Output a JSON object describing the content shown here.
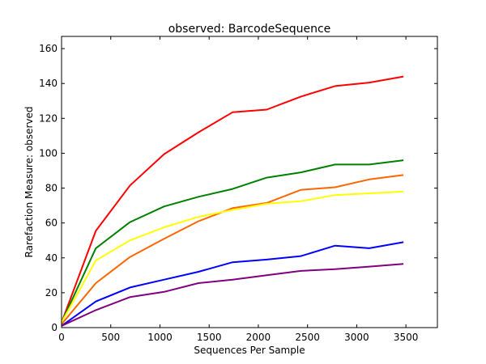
{
  "chart_data": {
    "type": "line",
    "title": "observed: BarcodeSequence",
    "xlabel": "Sequences Per Sample",
    "ylabel": "Rarefaction Measure: observed",
    "xlim": [
      0,
      3820
    ],
    "ylim": [
      0,
      167
    ],
    "xticks": [
      0,
      500,
      1000,
      1500,
      2000,
      2500,
      3000,
      3500
    ],
    "yticks": [
      0,
      20,
      40,
      60,
      80,
      100,
      120,
      140,
      160
    ],
    "grid": false,
    "legend": "none",
    "x": [
      1,
      348,
      696,
      1043,
      1391,
      1738,
      2085,
      2433,
      2780,
      3128,
      3475
    ],
    "series": [
      {
        "color": "#ff0000",
        "values": [
          3,
          55.5,
          81.5,
          99.5,
          112,
          123.5,
          125,
          132.5,
          138.5,
          140.5,
          144
        ]
      },
      {
        "color": "#008000",
        "values": [
          3,
          45.5,
          60.5,
          69.5,
          75,
          79.5,
          86,
          89,
          93.5,
          93.5,
          96
        ]
      },
      {
        "color": "#ff6600",
        "values": [
          2,
          25.5,
          40.5,
          51,
          61,
          68.5,
          71.5,
          79,
          80.5,
          85,
          87.5
        ]
      },
      {
        "color": "#ffff00",
        "values": [
          3,
          38.5,
          50,
          57.5,
          63.5,
          67.5,
          71,
          72.5,
          76,
          77,
          78
        ]
      },
      {
        "color": "#0000ff",
        "values": [
          1,
          15,
          23,
          27.5,
          32,
          37.5,
          39,
          41,
          47,
          45.5,
          49
        ]
      },
      {
        "color": "#800080",
        "values": [
          1,
          10,
          17.5,
          20.5,
          25.5,
          27.5,
          30,
          32.5,
          33.5,
          35,
          36.5
        ]
      }
    ]
  }
}
